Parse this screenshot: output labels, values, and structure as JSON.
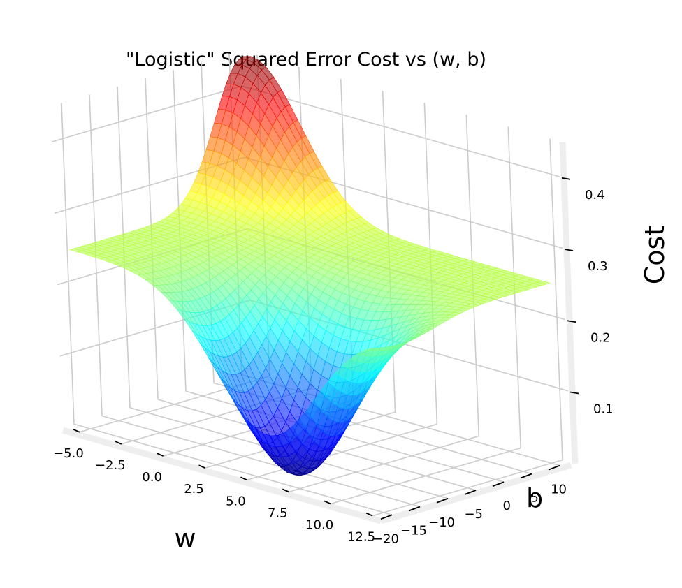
{
  "chart_data": {
    "type": "surface3d",
    "title": "\"Logistic\" Squared Error Cost vs (w, b)",
    "xlabel": "w",
    "ylabel": "b",
    "zlabel": "Cost",
    "colormap": "jet",
    "alpha": 0.6,
    "xlim": [
      -6,
      13
    ],
    "ylim": [
      -22,
      12
    ],
    "zlim": [
      0.0,
      0.45
    ],
    "x_ticks": [
      -5.0,
      -2.5,
      0.0,
      2.5,
      5.0,
      7.5,
      10.0,
      12.5
    ],
    "x_tick_labels": [
      "−5.0",
      "−2.5",
      "0.0",
      "2.5",
      "5.0",
      "7.5",
      "10.0",
      "12.5"
    ],
    "y_ticks": [
      -20,
      -15,
      -10,
      -5,
      0,
      5,
      10
    ],
    "y_tick_labels": [
      "−20",
      "−15",
      "−10",
      "−5",
      "0",
      "5",
      "10"
    ],
    "z_ticks": [
      0.1,
      0.2,
      0.3,
      0.4
    ],
    "z_tick_labels": [
      "0.1",
      "0.2",
      "0.3",
      "0.4"
    ],
    "surface_summary": {
      "plateau_cost": 0.25,
      "max_cost": 0.45,
      "max_at": {
        "w": -5.0,
        "b": 11.0
      },
      "min_cost": 0.0,
      "min_at": {
        "w": 6.0,
        "b": -16.0
      }
    },
    "grid": true
  }
}
